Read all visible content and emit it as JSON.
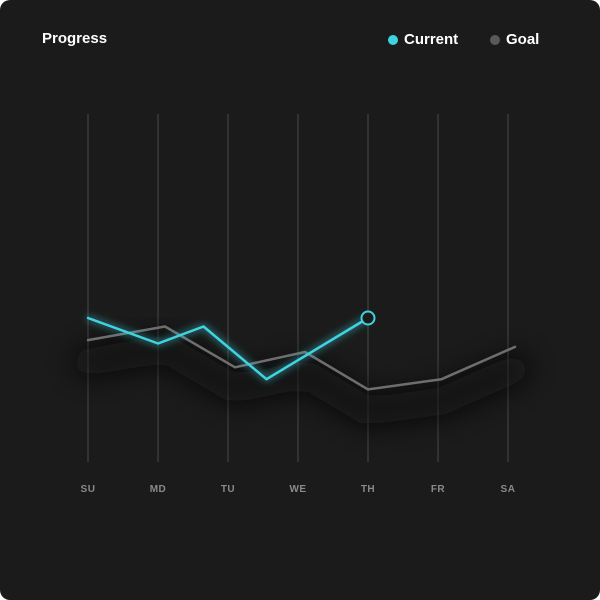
{
  "card": {
    "title": "Progress"
  },
  "colors": {
    "background": "#1b1b1b",
    "current": "#3fd3e0",
    "goal": "#6e6e6e",
    "gridline": "#3a3a3a"
  },
  "legend": {
    "position": "top-right",
    "items": [
      {
        "label": "Current",
        "color": "#3fd3e0"
      },
      {
        "label": "Goal",
        "color": "#5a5a5a"
      }
    ]
  },
  "chart_data": {
    "type": "line",
    "title": "Progress",
    "categories": [
      "SU",
      "MD",
      "TU",
      "WE",
      "TH",
      "FR",
      "SA"
    ],
    "grid": "vertical",
    "y_axis_visible": false,
    "ylim": [
      0,
      100
    ],
    "series": [
      {
        "name": "Current",
        "color": "#3fd3e0",
        "points": [
          {
            "x": 0,
            "y": 60
          },
          {
            "x": 1,
            "y": 45
          },
          {
            "x": 1.65,
            "y": 55
          },
          {
            "x": 2.55,
            "y": 24
          },
          {
            "x": 4,
            "y": 60
          }
        ],
        "end_marker": true
      },
      {
        "name": "Goal",
        "color": "#6e6e6e",
        "points": [
          {
            "x": 0,
            "y": 47
          },
          {
            "x": 1.1,
            "y": 55
          },
          {
            "x": 2.1,
            "y": 31
          },
          {
            "x": 3.1,
            "y": 40
          },
          {
            "x": 4,
            "y": 18
          },
          {
            "x": 5.05,
            "y": 24
          },
          {
            "x": 6.1,
            "y": 43
          }
        ]
      }
    ]
  }
}
